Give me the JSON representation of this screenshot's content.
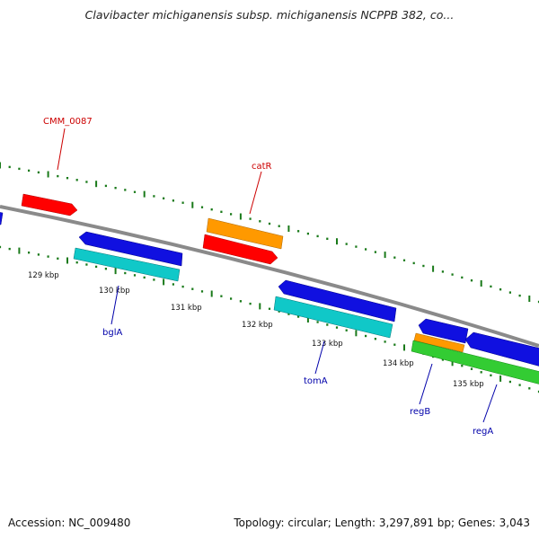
{
  "title": "Clavibacter michiganensis subsp. michiganensis NCPPB 382, co...",
  "footer": {
    "accession": "Accession: NC_009480",
    "summary": "Topology: circular; Length: 3,297,891 bp; Genes: 3,043"
  },
  "colors": {
    "backbone": "#8a8a8a",
    "tick": "#1a7a1a",
    "red": "#ff0000",
    "blue": "#1010e0",
    "cyan": "#10c8c8",
    "orange": "#ff9900",
    "green": "#33cc33",
    "label_red": "#cc0000",
    "label_blue": "#0000aa"
  },
  "tick_labels": [
    "129 kbp",
    "130 kbp",
    "131 kbp",
    "132 kbp",
    "133 kbp",
    "134 kbp",
    "135 kbp"
  ],
  "gene_labels": [
    "CMM_0087",
    "catR",
    "bglA",
    "tomA",
    "regB",
    "regA"
  ]
}
